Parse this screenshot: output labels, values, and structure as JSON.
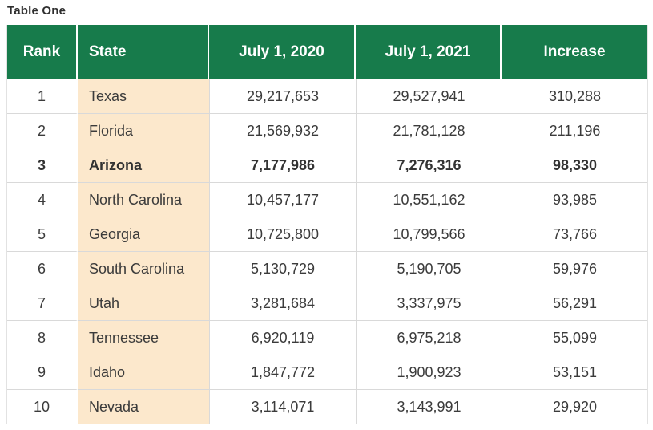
{
  "page_title": "Table One",
  "table": {
    "columns": [
      "Rank",
      "State",
      "July 1, 2020",
      "July 1, 2021",
      "Increase"
    ],
    "rows": [
      {
        "rank": "1",
        "state": "Texas",
        "pop_2020": "29,217,653",
        "pop_2021": "29,527,941",
        "increase": "310,288",
        "bold": false
      },
      {
        "rank": "2",
        "state": "Florida",
        "pop_2020": "21,569,932",
        "pop_2021": "21,781,128",
        "increase": "211,196",
        "bold": false
      },
      {
        "rank": "3",
        "state": "Arizona",
        "pop_2020": "7,177,986",
        "pop_2021": "7,276,316",
        "increase": "98,330",
        "bold": true
      },
      {
        "rank": "4",
        "state": "North Carolina",
        "pop_2020": "10,457,177",
        "pop_2021": "10,551,162",
        "increase": "93,985",
        "bold": false
      },
      {
        "rank": "5",
        "state": "Georgia",
        "pop_2020": "10,725,800",
        "pop_2021": "10,799,566",
        "increase": "73,766",
        "bold": false
      },
      {
        "rank": "6",
        "state": "South Carolina",
        "pop_2020": "5,130,729",
        "pop_2021": "5,190,705",
        "increase": "59,976",
        "bold": false
      },
      {
        "rank": "7",
        "state": "Utah",
        "pop_2020": "3,281,684",
        "pop_2021": "3,337,975",
        "increase": "56,291",
        "bold": false
      },
      {
        "rank": "8",
        "state": "Tennessee",
        "pop_2020": "6,920,119",
        "pop_2021": "6,975,218",
        "increase": "55,099",
        "bold": false
      },
      {
        "rank": "9",
        "state": "Idaho",
        "pop_2020": "1,847,772",
        "pop_2021": "1,900,923",
        "increase": "53,151",
        "bold": false
      },
      {
        "rank": "10",
        "state": "Nevada",
        "pop_2020": "3,114,071",
        "pop_2021": "3,143,991",
        "increase": "29,920",
        "bold": false
      }
    ]
  },
  "colors": {
    "header_background": "#177b4b",
    "header_text": "#ffffff",
    "state_column_background": "#fce8cc",
    "row_border": "#d9d9d9",
    "body_text": "#3b3b3b"
  }
}
